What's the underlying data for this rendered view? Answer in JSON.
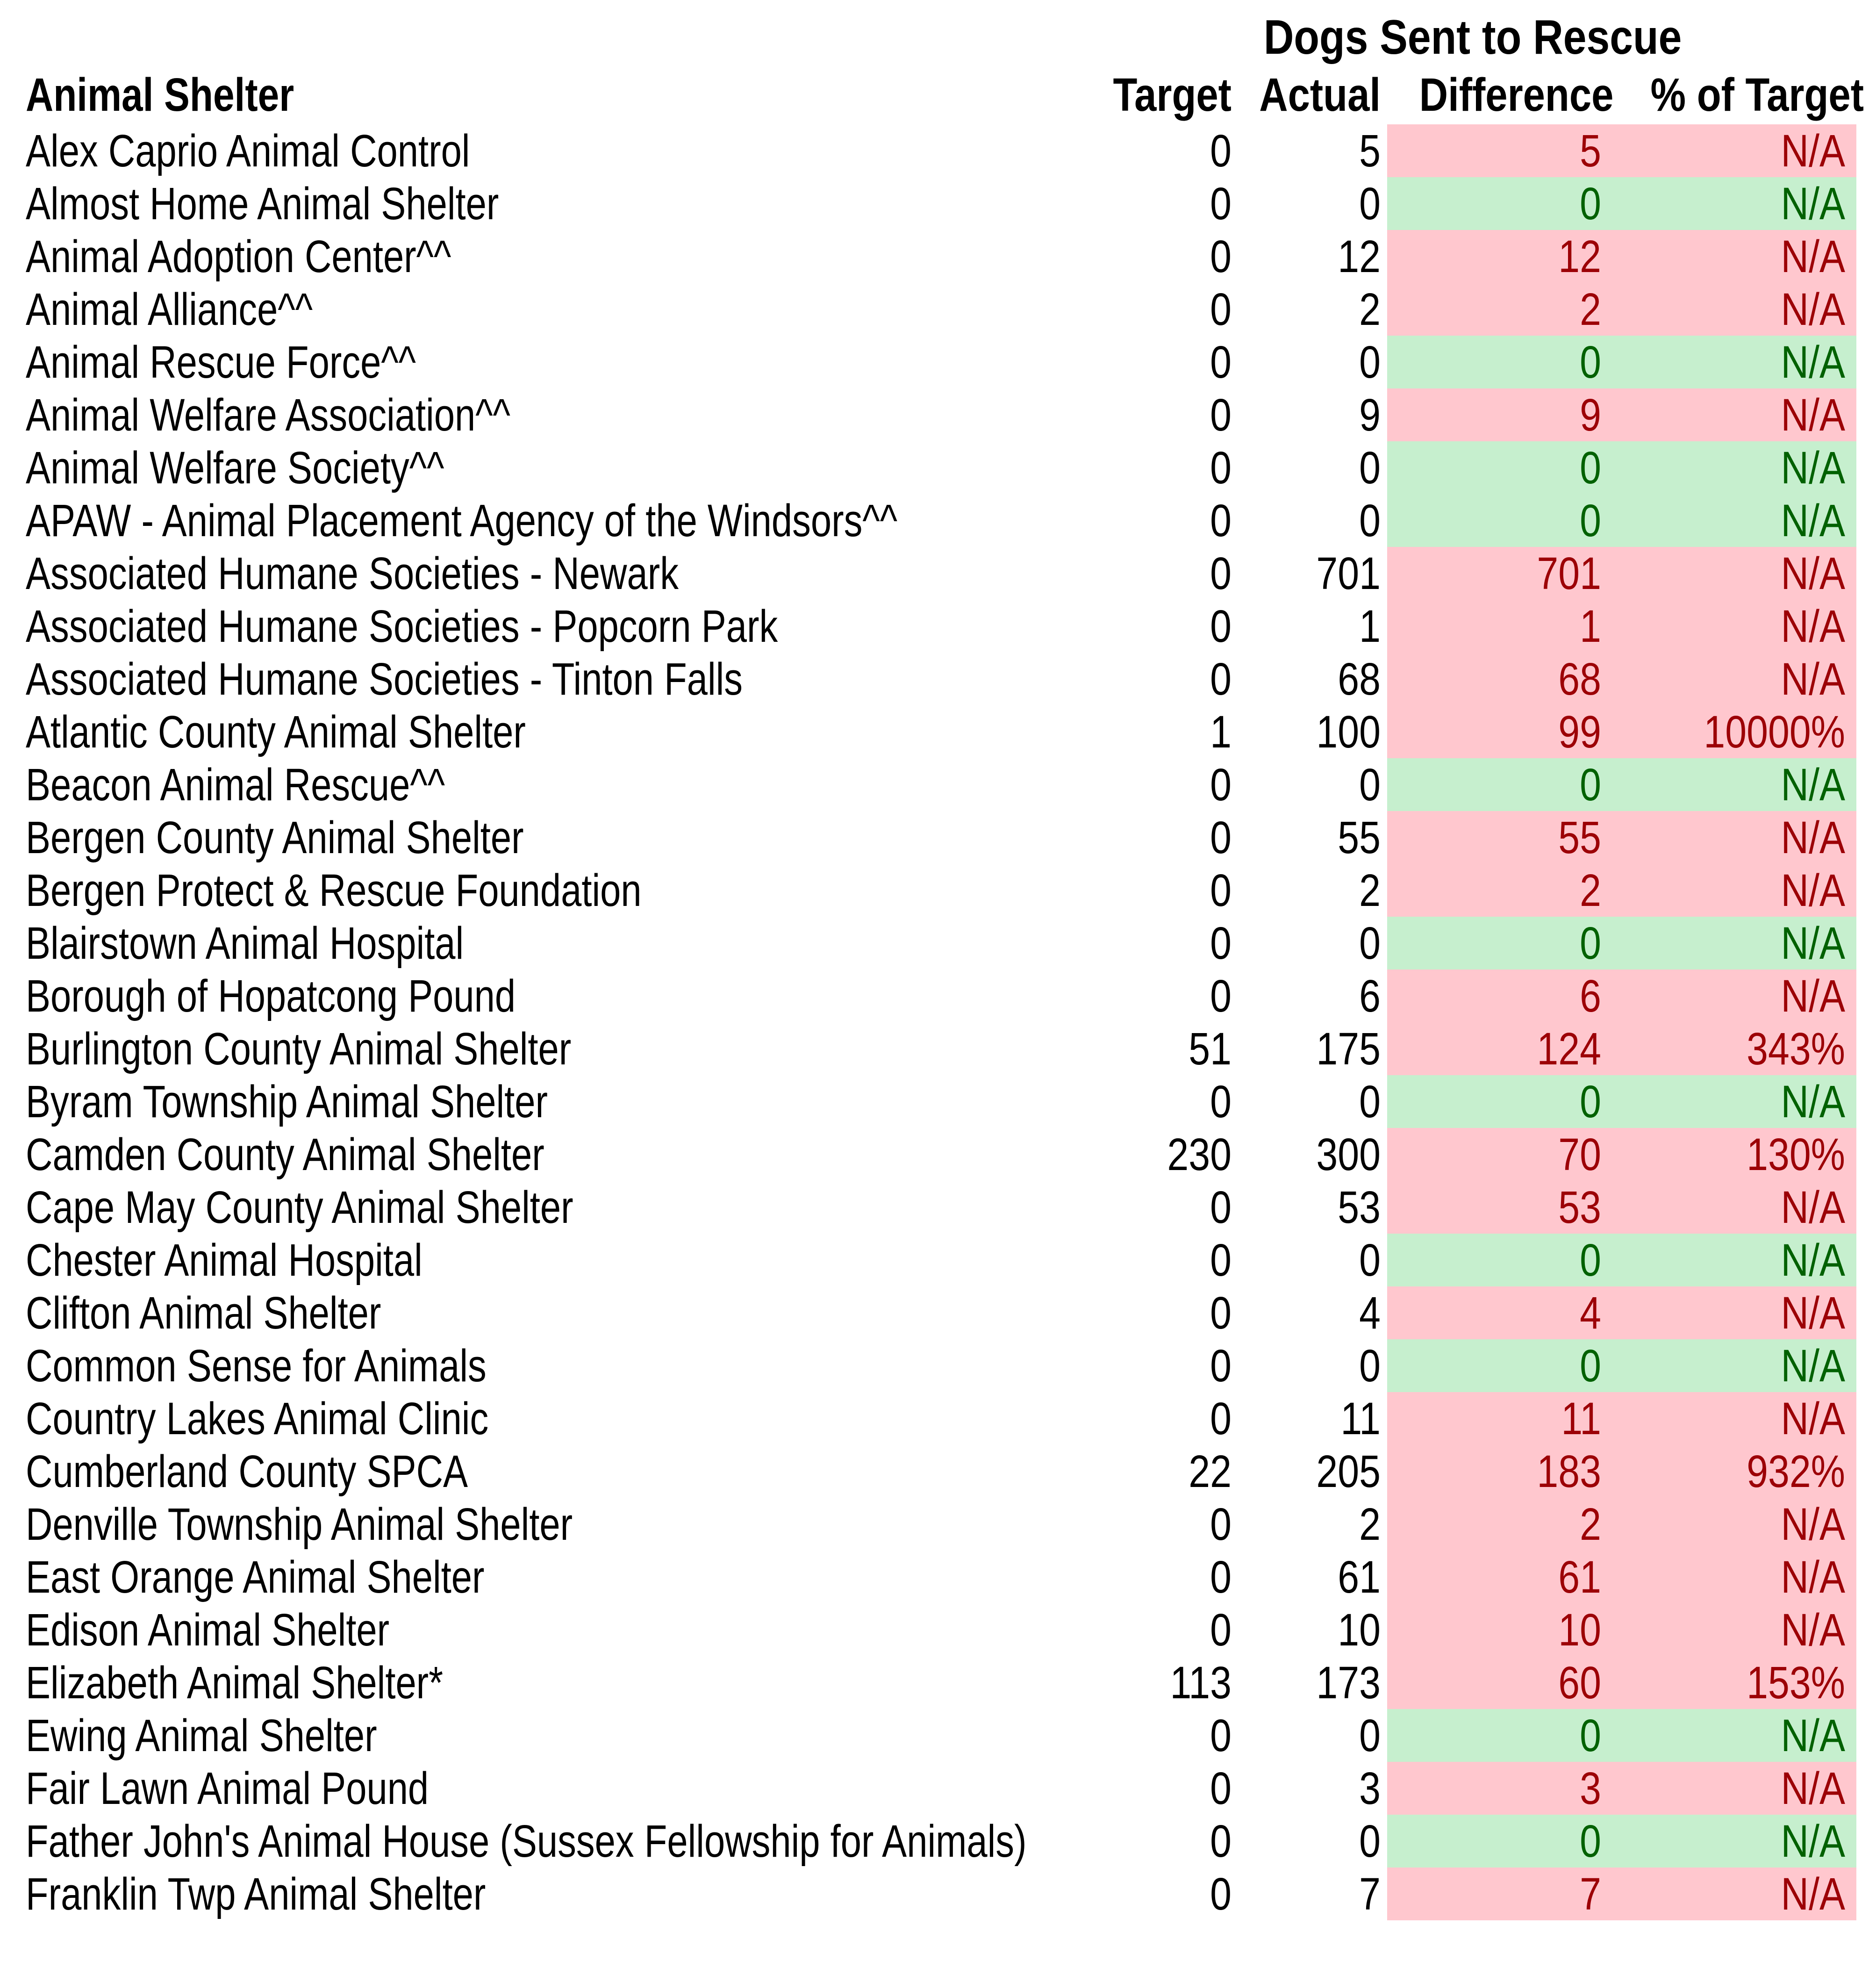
{
  "title": "Dogs Sent to Rescue",
  "columns": {
    "shelter": "Animal Shelter",
    "target": "Target",
    "actual": "Actual",
    "difference": "Difference",
    "pct_of_target": "% of Target"
  },
  "status_colors": {
    "over_target_background": "#FFC7CE",
    "over_target_text": "#9C0006",
    "on_target_background": "#C6EFCE",
    "on_target_text": "#006100"
  },
  "rows": [
    {
      "name": "Alex Caprio Animal Control",
      "target": "0",
      "actual": "5",
      "difference": "5",
      "pct": "N/A",
      "status": "over"
    },
    {
      "name": "Almost Home Animal Shelter",
      "target": "0",
      "actual": "0",
      "difference": "0",
      "pct": "N/A",
      "status": "on_target"
    },
    {
      "name": "Animal Adoption Center^^",
      "target": "0",
      "actual": "12",
      "difference": "12",
      "pct": "N/A",
      "status": "over"
    },
    {
      "name": "Animal Alliance^^",
      "target": "0",
      "actual": "2",
      "difference": "2",
      "pct": "N/A",
      "status": "over"
    },
    {
      "name": "Animal Rescue Force^^",
      "target": "0",
      "actual": "0",
      "difference": "0",
      "pct": "N/A",
      "status": "on_target"
    },
    {
      "name": "Animal Welfare Association^^",
      "target": "0",
      "actual": "9",
      "difference": "9",
      "pct": "N/A",
      "status": "over"
    },
    {
      "name": "Animal Welfare Society^^",
      "target": "0",
      "actual": "0",
      "difference": "0",
      "pct": "N/A",
      "status": "on_target"
    },
    {
      "name": "APAW - Animal Placement Agency of the Windsors^^",
      "target": "0",
      "actual": "0",
      "difference": "0",
      "pct": "N/A",
      "status": "on_target"
    },
    {
      "name": "Associated Humane Societies - Newark",
      "target": "0",
      "actual": "701",
      "difference": "701",
      "pct": "N/A",
      "status": "over"
    },
    {
      "name": "Associated Humane Societies - Popcorn Park",
      "target": "0",
      "actual": "1",
      "difference": "1",
      "pct": "N/A",
      "status": "over"
    },
    {
      "name": "Associated Humane Societies - Tinton Falls",
      "target": "0",
      "actual": "68",
      "difference": "68",
      "pct": "N/A",
      "status": "over"
    },
    {
      "name": "Atlantic County Animal Shelter",
      "target": "1",
      "actual": "100",
      "difference": "99",
      "pct": "10000%",
      "status": "over"
    },
    {
      "name": "Beacon Animal Rescue^^",
      "target": "0",
      "actual": "0",
      "difference": "0",
      "pct": "N/A",
      "status": "on_target"
    },
    {
      "name": "Bergen County Animal Shelter",
      "target": "0",
      "actual": "55",
      "difference": "55",
      "pct": "N/A",
      "status": "over"
    },
    {
      "name": "Bergen Protect & Rescue Foundation",
      "target": "0",
      "actual": "2",
      "difference": "2",
      "pct": "N/A",
      "status": "over"
    },
    {
      "name": "Blairstown Animal Hospital",
      "target": "0",
      "actual": "0",
      "difference": "0",
      "pct": "N/A",
      "status": "on_target"
    },
    {
      "name": "Borough of Hopatcong Pound",
      "target": "0",
      "actual": "6",
      "difference": "6",
      "pct": "N/A",
      "status": "over"
    },
    {
      "name": "Burlington County Animal Shelter",
      "target": "51",
      "actual": "175",
      "difference": "124",
      "pct": "343%",
      "status": "over"
    },
    {
      "name": "Byram Township Animal Shelter",
      "target": "0",
      "actual": "0",
      "difference": "0",
      "pct": "N/A",
      "status": "on_target"
    },
    {
      "name": "Camden County Animal Shelter",
      "target": "230",
      "actual": "300",
      "difference": "70",
      "pct": "130%",
      "status": "over"
    },
    {
      "name": "Cape May County Animal Shelter",
      "target": "0",
      "actual": "53",
      "difference": "53",
      "pct": "N/A",
      "status": "over"
    },
    {
      "name": "Chester Animal Hospital",
      "target": "0",
      "actual": "0",
      "difference": "0",
      "pct": "N/A",
      "status": "on_target"
    },
    {
      "name": "Clifton Animal Shelter",
      "target": "0",
      "actual": "4",
      "difference": "4",
      "pct": "N/A",
      "status": "over"
    },
    {
      "name": "Common Sense for Animals",
      "target": "0",
      "actual": "0",
      "difference": "0",
      "pct": "N/A",
      "status": "on_target"
    },
    {
      "name": "Country Lakes Animal Clinic",
      "target": "0",
      "actual": "11",
      "difference": "11",
      "pct": "N/A",
      "status": "over"
    },
    {
      "name": "Cumberland County SPCA",
      "target": "22",
      "actual": "205",
      "difference": "183",
      "pct": "932%",
      "status": "over"
    },
    {
      "name": "Denville Township Animal Shelter",
      "target": "0",
      "actual": "2",
      "difference": "2",
      "pct": "N/A",
      "status": "over"
    },
    {
      "name": "East Orange Animal Shelter",
      "target": "0",
      "actual": "61",
      "difference": "61",
      "pct": "N/A",
      "status": "over"
    },
    {
      "name": "Edison Animal Shelter",
      "target": "0",
      "actual": "10",
      "difference": "10",
      "pct": "N/A",
      "status": "over"
    },
    {
      "name": "Elizabeth Animal Shelter*",
      "target": "113",
      "actual": "173",
      "difference": "60",
      "pct": "153%",
      "status": "over"
    },
    {
      "name": "Ewing Animal Shelter",
      "target": "0",
      "actual": "0",
      "difference": "0",
      "pct": "N/A",
      "status": "on_target"
    },
    {
      "name": "Fair Lawn Animal Pound",
      "target": "0",
      "actual": "3",
      "difference": "3",
      "pct": "N/A",
      "status": "over"
    },
    {
      "name": "Father John's Animal House (Sussex Fellowship for Animals)",
      "target": "0",
      "actual": "0",
      "difference": "0",
      "pct": "N/A",
      "status": "on_target"
    },
    {
      "name": "Franklin Twp Animal Shelter",
      "target": "0",
      "actual": "7",
      "difference": "7",
      "pct": "N/A",
      "status": "over"
    }
  ]
}
